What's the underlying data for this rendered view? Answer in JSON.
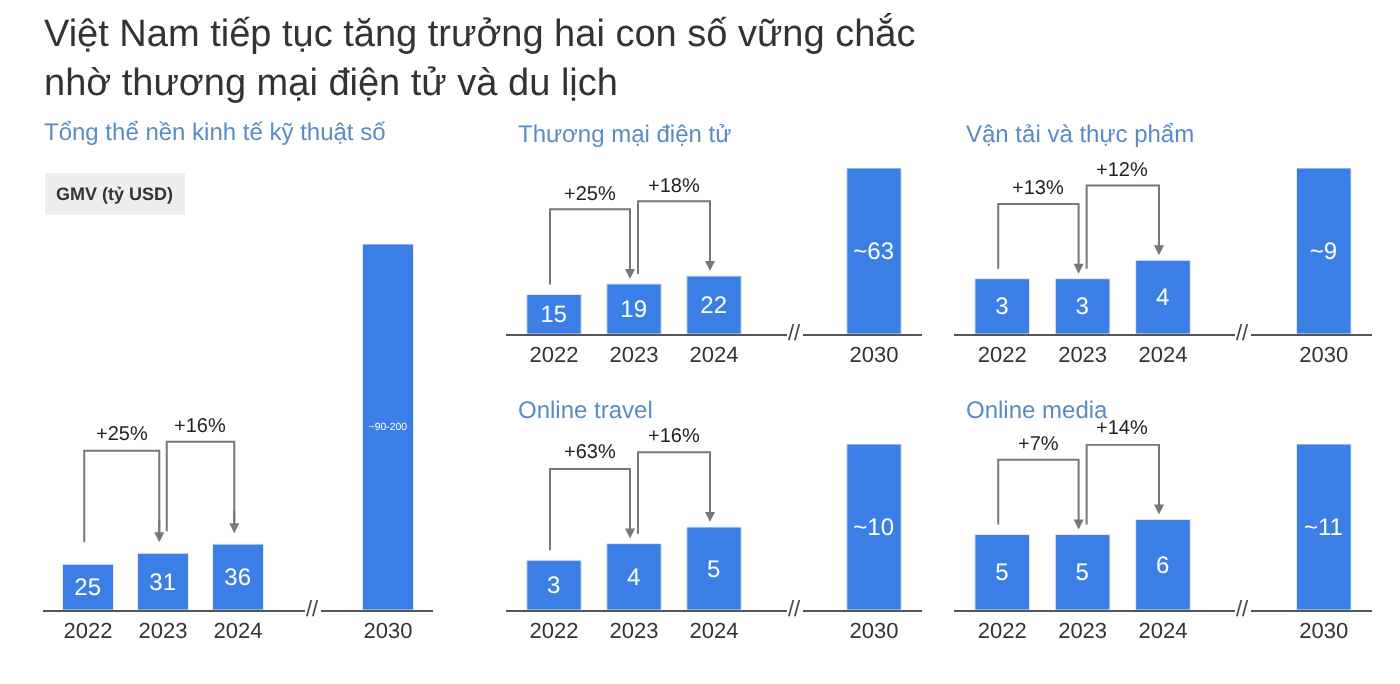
{
  "chart_data": [
    {
      "type": "bar",
      "title": "Việt Nam tiếp tục tăng trưởng hai con số vững chắc\nnhờ thương mại điện tử và du lịch",
      "subtitle": "Tổng thể nền kinh tế kỹ thuật số",
      "ylabel": "GMV (tỷ USD)",
      "categories": [
        "2022",
        "2023",
        "2024",
        null,
        "2030"
      ],
      "values": [
        25,
        31,
        36,
        null,
        200
      ],
      "value_labels": [
        "25",
        "31",
        "36",
        null,
        "~90-200"
      ],
      "color": "#3b7fe6",
      "ylim": [
        0,
        200
      ],
      "tick_labels": "x",
      "annotations": [
        "+25%",
        "+16%",
        "//"
      ]
    },
    {
      "type": "bar",
      "title": "Thương mại điện tử",
      "categories": [
        "2022",
        "2023",
        "2024",
        null,
        "2030"
      ],
      "values": [
        15,
        19,
        22,
        null,
        63
      ],
      "value_labels": [
        "15",
        "19",
        "22",
        null,
        "~63"
      ],
      "color": "#3b7fe6",
      "ylim": [
        0,
        63
      ],
      "tick_labels": "x",
      "annotations": [
        "+25%",
        "+18%",
        "//"
      ]
    },
    {
      "type": "bar",
      "title": "Vận tải và thực phẩm",
      "categories": [
        "2022",
        "2023",
        "2024",
        null,
        "2030"
      ],
      "values": [
        3,
        3,
        4,
        null,
        9
      ],
      "value_labels": [
        "3",
        "3",
        "4",
        null,
        "~9"
      ],
      "color": "#3b7fe6",
      "ylim": [
        0,
        9
      ],
      "tick_labels": "x",
      "annotations": [
        "+13%",
        "+12%",
        "//"
      ]
    },
    {
      "type": "bar",
      "title": "Online travel",
      "categories": [
        "2022",
        "2023",
        "2024",
        null,
        "2030"
      ],
      "values": [
        3,
        4,
        5,
        null,
        10
      ],
      "value_labels": [
        "3",
        "4",
        "5",
        null,
        "~10"
      ],
      "color": "#3b7fe6",
      "ylim": [
        0,
        10
      ],
      "tick_labels": "x",
      "annotations": [
        "+63%",
        "+16%",
        "//"
      ]
    },
    {
      "type": "bar",
      "title": "Online media",
      "categories": [
        "2022",
        "2023",
        "2024",
        null,
        "2030"
      ],
      "values": [
        5,
        5,
        6,
        null,
        11
      ],
      "value_labels": [
        "5",
        "5",
        "6",
        null,
        "~11"
      ],
      "color": "#3b7fe6",
      "ylim": [
        0,
        11
      ],
      "tick_labels": "x",
      "annotations": [
        "+7%",
        "+14%",
        "//"
      ]
    }
  ]
}
